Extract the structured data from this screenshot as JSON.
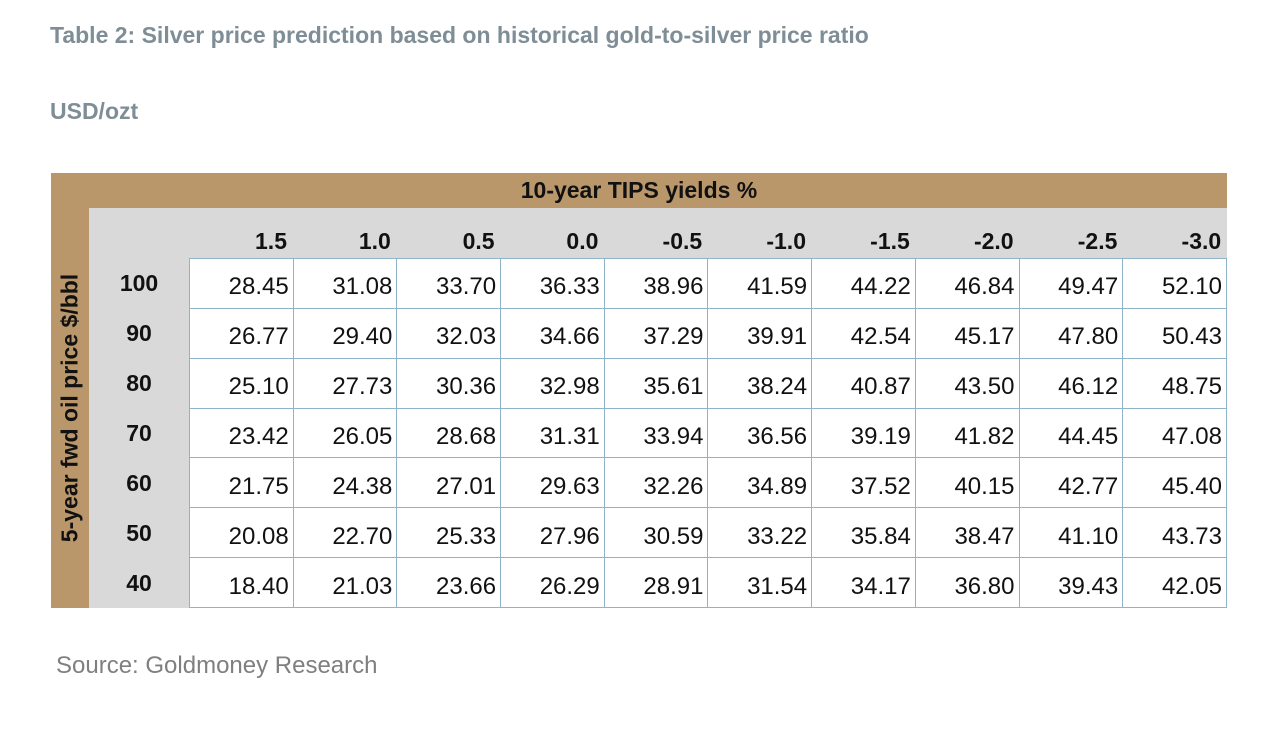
{
  "title": "Table 2: Silver price prediction based on historical gold-to-silver price ratio",
  "unit": "USD/ozt",
  "source": "Source: Goldmoney Research",
  "colors": {
    "frame": "#b9976b",
    "header_panel": "#d9d9d9",
    "cell_border": "#8fb3c9",
    "title_text": "#7e8d96"
  },
  "chart_data": {
    "type": "table",
    "col_group_label": "10-year TIPS yields %",
    "row_group_label": "5-year fwd oil price $/bbl",
    "columns": [
      "1.5",
      "1.0",
      "0.5",
      "0.0",
      "-0.5",
      "-1.0",
      "-1.5",
      "-2.0",
      "-2.5",
      "-3.0"
    ],
    "rows": [
      {
        "label": "100",
        "values": [
          "28.45",
          "31.08",
          "33.70",
          "36.33",
          "38.96",
          "41.59",
          "44.22",
          "46.84",
          "49.47",
          "52.10"
        ]
      },
      {
        "label": "90",
        "values": [
          "26.77",
          "29.40",
          "32.03",
          "34.66",
          "37.29",
          "39.91",
          "42.54",
          "45.17",
          "47.80",
          "50.43"
        ]
      },
      {
        "label": "80",
        "values": [
          "25.10",
          "27.73",
          "30.36",
          "32.98",
          "35.61",
          "38.24",
          "40.87",
          "43.50",
          "46.12",
          "48.75"
        ]
      },
      {
        "label": "70",
        "values": [
          "23.42",
          "26.05",
          "28.68",
          "31.31",
          "33.94",
          "36.56",
          "39.19",
          "41.82",
          "44.45",
          "47.08"
        ]
      },
      {
        "label": "60",
        "values": [
          "21.75",
          "24.38",
          "27.01",
          "29.63",
          "32.26",
          "34.89",
          "37.52",
          "40.15",
          "42.77",
          "45.40"
        ]
      },
      {
        "label": "50",
        "values": [
          "20.08",
          "22.70",
          "25.33",
          "27.96",
          "30.59",
          "33.22",
          "35.84",
          "38.47",
          "41.10",
          "43.73"
        ]
      },
      {
        "label": "40",
        "values": [
          "18.40",
          "21.03",
          "23.66",
          "26.29",
          "28.91",
          "31.54",
          "34.17",
          "36.80",
          "39.43",
          "42.05"
        ]
      }
    ]
  }
}
